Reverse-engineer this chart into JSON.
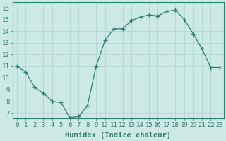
{
  "xlabel": "Humidex (Indice chaleur)",
  "ylabel": "",
  "x_values": [
    0,
    1,
    2,
    3,
    4,
    5,
    6,
    7,
    8,
    9,
    10,
    11,
    12,
    13,
    14,
    15,
    16,
    17,
    18,
    19,
    20,
    21,
    22,
    23
  ],
  "y_values": [
    11.0,
    10.5,
    9.2,
    8.7,
    8.0,
    7.9,
    6.6,
    6.7,
    7.6,
    11.0,
    13.2,
    14.2,
    14.2,
    14.9,
    15.2,
    15.4,
    15.3,
    15.7,
    15.8,
    15.0,
    13.8,
    12.5,
    10.9,
    10.9
  ],
  "line_color": "#2e7d6e",
  "marker": "+",
  "marker_size": 4,
  "bg_color": "#cce9e5",
  "grid_color": "#b0d8d2",
  "axis_color": "#2e7d6e",
  "tick_color": "#2e7d6e",
  "label_color": "#2e7d6e",
  "xlim": [
    -0.5,
    23.5
  ],
  "ylim": [
    6.5,
    16.5
  ],
  "yticks": [
    7,
    8,
    9,
    10,
    11,
    12,
    13,
    14,
    15,
    16
  ],
  "xticks": [
    0,
    1,
    2,
    3,
    4,
    5,
    6,
    7,
    8,
    9,
    10,
    11,
    12,
    13,
    14,
    15,
    16,
    17,
    18,
    19,
    20,
    21,
    22,
    23
  ],
  "font_size": 6.5,
  "xlabel_fontsize": 7.5
}
